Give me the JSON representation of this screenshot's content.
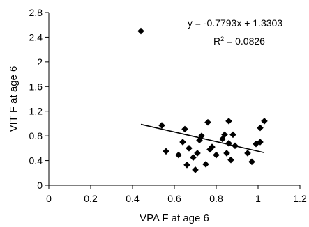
{
  "chart_data": {
    "type": "scatter",
    "xlabel": "VPA  F at age 6",
    "ylabel": "VIT F at age 6",
    "xlim": [
      0,
      1.2
    ],
    "ylim": [
      0,
      2.8
    ],
    "x_ticks": [
      0,
      0.2,
      0.4,
      0.6,
      0.8,
      1,
      1.2
    ],
    "x_tick_labels": [
      "0",
      "0.2",
      "0.4",
      "0.6",
      "0.8",
      "1",
      "1.2"
    ],
    "y_ticks": [
      0,
      0.4,
      0.8,
      1.2,
      1.6,
      2,
      2.4,
      2.8
    ],
    "y_tick_labels": [
      "0",
      "0.4",
      "0.8",
      "1.2",
      "1.6",
      "2",
      "2.4",
      "2.8"
    ],
    "grid": false,
    "marker": "diamond",
    "marker_color": "#000000",
    "points": [
      [
        0.44,
        2.5
      ],
      [
        0.54,
        0.97
      ],
      [
        0.56,
        0.55
      ],
      [
        0.62,
        0.49
      ],
      [
        0.64,
        0.7
      ],
      [
        0.65,
        0.91
      ],
      [
        0.66,
        0.33
      ],
      [
        0.67,
        0.6
      ],
      [
        0.69,
        0.45
      ],
      [
        0.7,
        0.25
      ],
      [
        0.71,
        0.52
      ],
      [
        0.72,
        0.73
      ],
      [
        0.73,
        0.8
      ],
      [
        0.75,
        0.34
      ],
      [
        0.76,
        1.02
      ],
      [
        0.77,
        0.58
      ],
      [
        0.78,
        0.62
      ],
      [
        0.8,
        0.49
      ],
      [
        0.83,
        0.75
      ],
      [
        0.84,
        0.82
      ],
      [
        0.85,
        0.52
      ],
      [
        0.86,
        1.04
      ],
      [
        0.86,
        0.68
      ],
      [
        0.87,
        0.41
      ],
      [
        0.88,
        0.82
      ],
      [
        0.89,
        0.64
      ],
      [
        0.95,
        0.52
      ],
      [
        0.97,
        0.38
      ],
      [
        0.99,
        0.67
      ],
      [
        1.01,
        0.7
      ],
      [
        1.01,
        0.93
      ],
      [
        1.03,
        1.04
      ]
    ],
    "trendline": {
      "slope": -0.7793,
      "intercept": 1.3303,
      "x_range": [
        0.44,
        1.03
      ],
      "color": "#000000"
    },
    "annotations": {
      "equation": "y = -0.7793x + 1.3303",
      "r2_prefix": "R",
      "r2_exp": "2",
      "r2_rest": " = 0.0826"
    }
  }
}
